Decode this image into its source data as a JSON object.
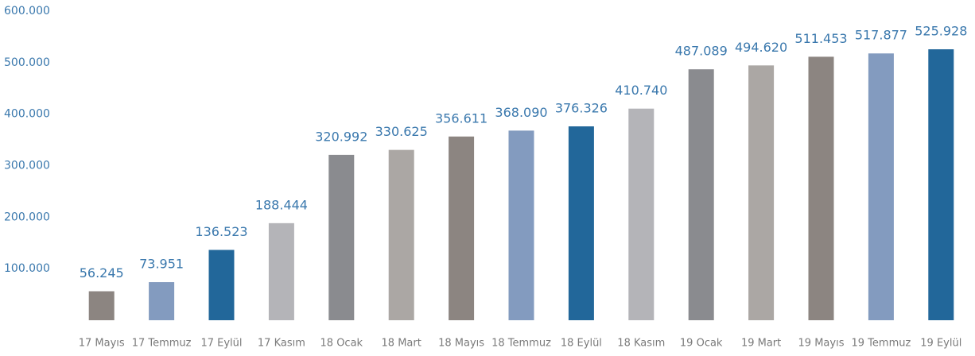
{
  "chart_data": {
    "type": "bar",
    "categories": [
      "17 Mayıs",
      "17 Temmuz",
      "17 Eylül",
      "17 Kasım",
      "18 Ocak",
      "18 Mart",
      "18 Mayıs",
      "18 Temmuz",
      "18 Eylül",
      "18 Kasım",
      "19 Ocak",
      "19 Mart",
      "19 Mayıs",
      "19 Temmuz",
      "19 Eylül"
    ],
    "values": [
      56245,
      73951,
      136523,
      188444,
      320992,
      330625,
      356611,
      368090,
      376326,
      410740,
      487089,
      494620,
      511453,
      517877,
      525928
    ],
    "value_labels": [
      "56.245",
      "73.951",
      "136.523",
      "188.444",
      "320.992",
      "330.625",
      "356.611",
      "368.090",
      "376.326",
      "410.740",
      "487.089",
      "494.620",
      "511.453",
      "517.877",
      "525.928"
    ],
    "colors": [
      "#8c8581",
      "#839bbf",
      "#22679a",
      "#b4b4b8",
      "#8a8b8f",
      "#aba7a4",
      "#8c8581",
      "#839bbf",
      "#22679a",
      "#b4b4b8",
      "#8a8b8f",
      "#aba7a4",
      "#8c8581",
      "#839bbf",
      "#22679a"
    ],
    "ylim": [
      0,
      600000
    ],
    "yticks": [
      {
        "value": 100000,
        "label": "100.000"
      },
      {
        "value": 200000,
        "label": "200.000"
      },
      {
        "value": 300000,
        "label": "300.000"
      },
      {
        "value": 400000,
        "label": "400.000"
      },
      {
        "value": 500000,
        "label": "500.000"
      },
      {
        "value": 600000,
        "label": "600.000"
      }
    ],
    "grid": false
  }
}
